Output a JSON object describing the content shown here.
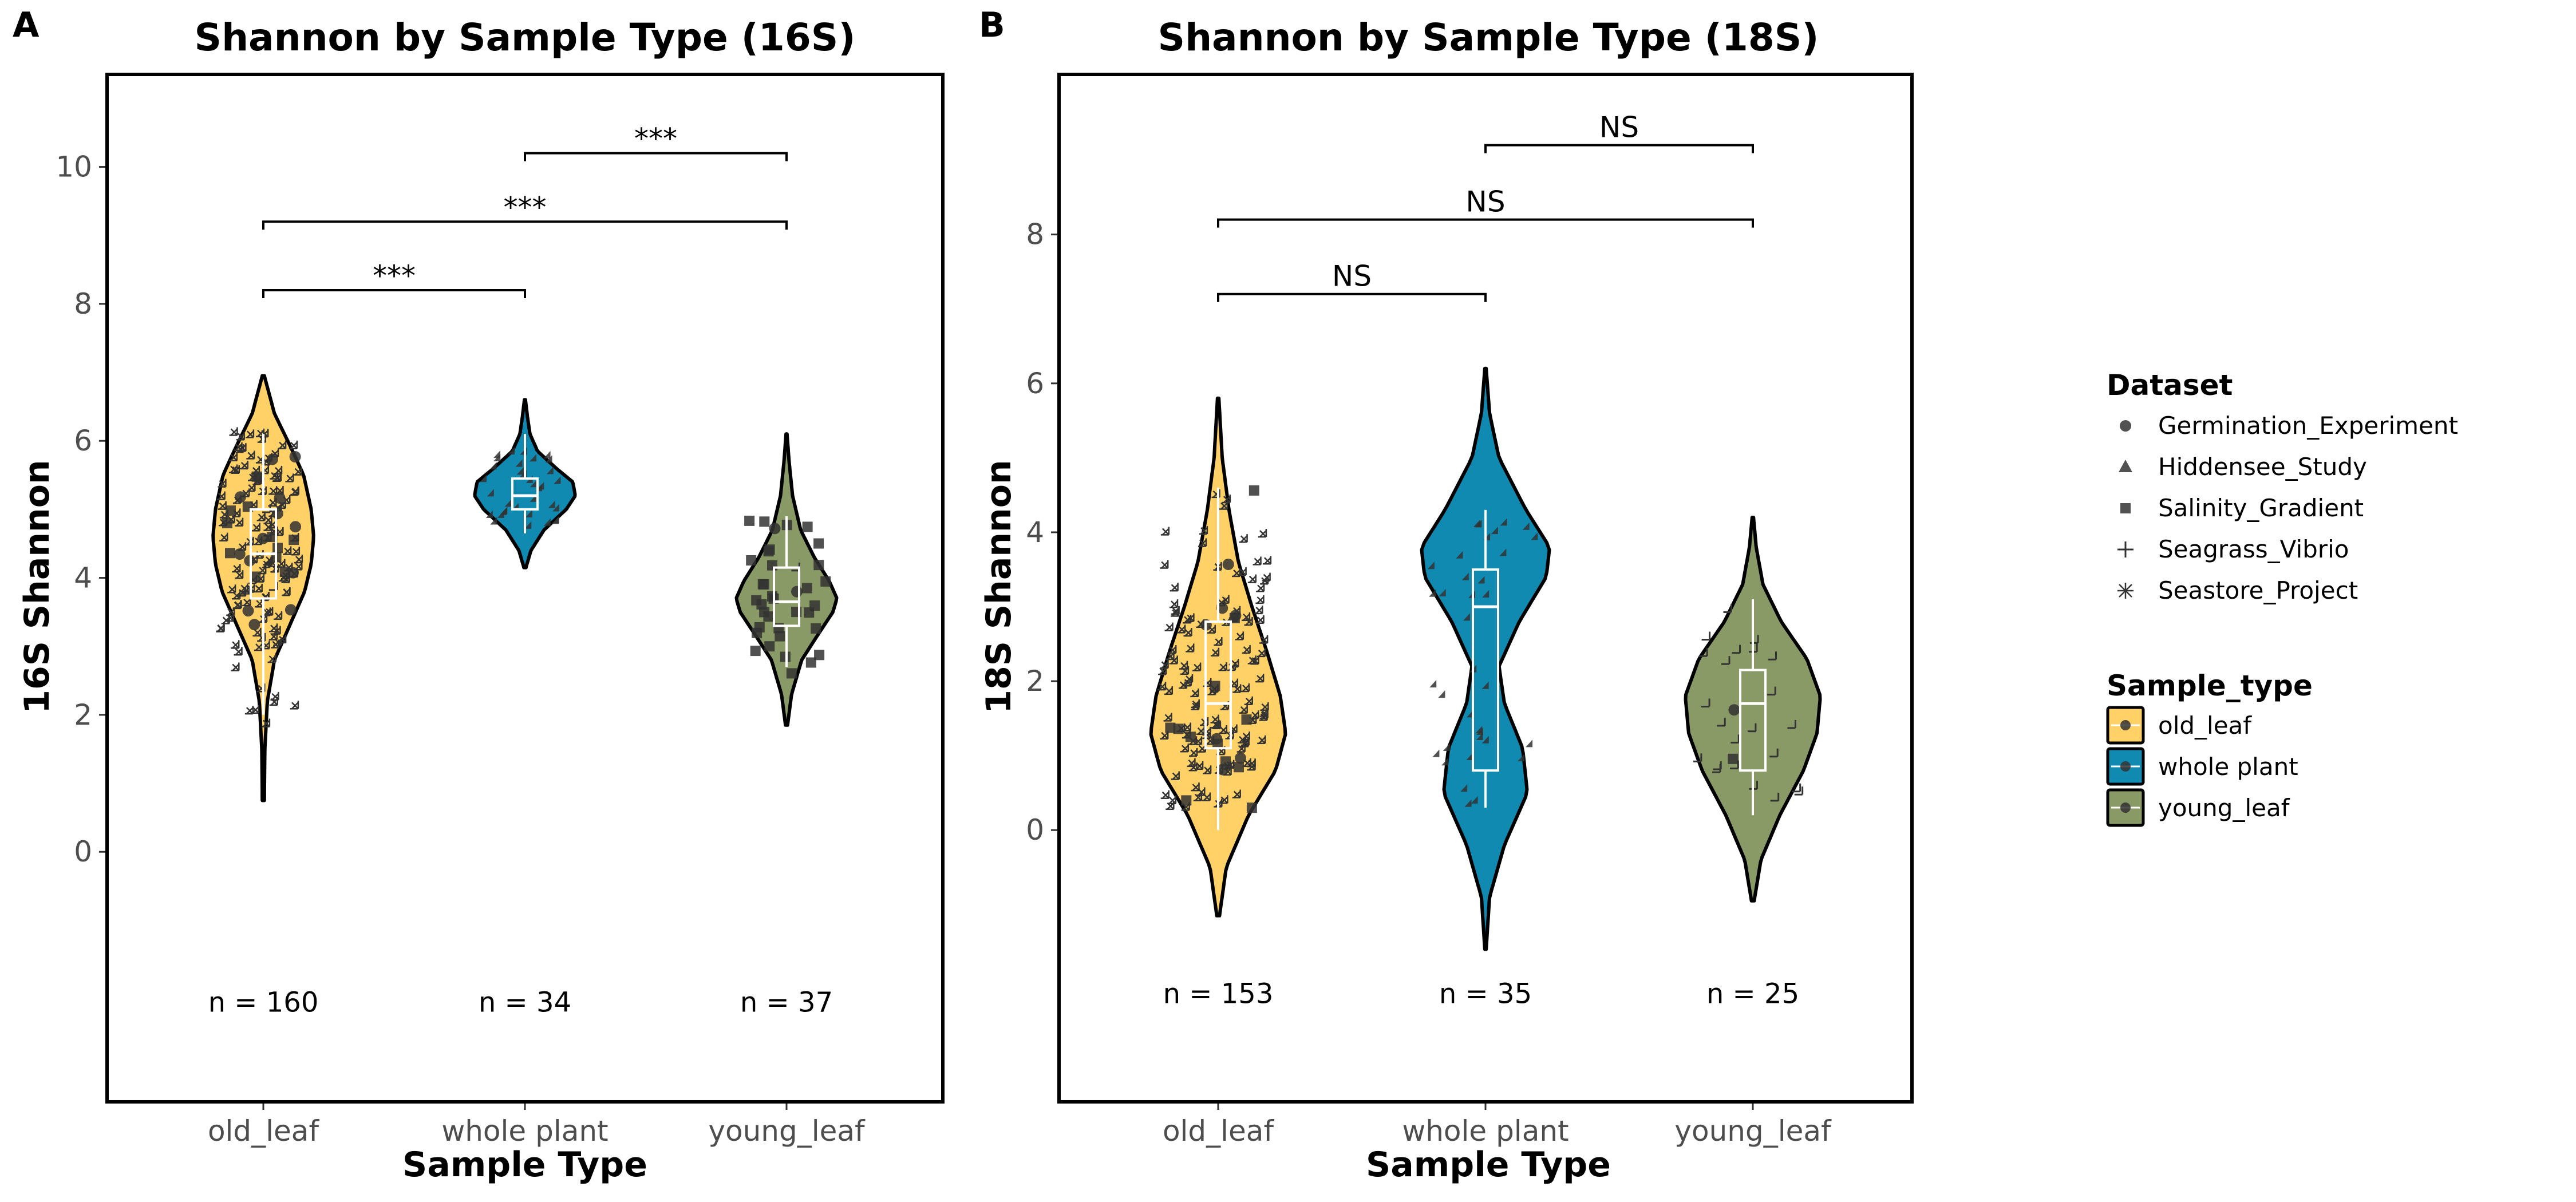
{
  "chart_data": [
    {
      "panel_label": "A",
      "type": "violin",
      "title": "Shannon by Sample Type (16S)",
      "xlabel": "Sample Type",
      "ylabel": "16S Shannon",
      "ylim": [
        -3.65,
        11.35
      ],
      "yticks": [
        "0",
        "2",
        "4",
        "6",
        "8",
        "10"
      ],
      "categories": [
        "old_leaf",
        "whole plant",
        "young_leaf"
      ],
      "violins": [
        {
          "category": "old_leaf",
          "min": 0.75,
          "max": 6.95,
          "median": 4.35,
          "q1": 3.7,
          "q3": 5.0,
          "whisker_low": 2.0,
          "whisker_high": 6.1,
          "density": [
            [
              0.75,
              0.02
            ],
            [
              1.5,
              0.03
            ],
            [
              2.2,
              0.08
            ],
            [
              2.8,
              0.22
            ],
            [
              3.3,
              0.52
            ],
            [
              3.8,
              0.82
            ],
            [
              4.2,
              0.95
            ],
            [
              4.6,
              1.0
            ],
            [
              5.0,
              0.95
            ],
            [
              5.5,
              0.8
            ],
            [
              5.9,
              0.55
            ],
            [
              6.4,
              0.22
            ],
            [
              6.95,
              0.02
            ]
          ]
        },
        {
          "category": "whole plant",
          "min": 4.15,
          "max": 6.6,
          "median": 5.2,
          "q1": 5.0,
          "q3": 5.45,
          "whisker_low": 4.65,
          "whisker_high": 6.1,
          "density": [
            [
              4.15,
              0.02
            ],
            [
              4.4,
              0.12
            ],
            [
              4.7,
              0.38
            ],
            [
              5.0,
              0.82
            ],
            [
              5.2,
              1.0
            ],
            [
              5.4,
              0.95
            ],
            [
              5.6,
              0.62
            ],
            [
              5.85,
              0.25
            ],
            [
              6.1,
              0.1
            ],
            [
              6.35,
              0.05
            ],
            [
              6.6,
              0.01
            ]
          ]
        },
        {
          "category": "young_leaf",
          "min": 1.85,
          "max": 6.1,
          "median": 3.65,
          "q1": 3.3,
          "q3": 4.15,
          "whisker_low": 2.7,
          "whisker_high": 4.9,
          "density": [
            [
              1.85,
              0.02
            ],
            [
              2.3,
              0.1
            ],
            [
              2.8,
              0.3
            ],
            [
              3.2,
              0.65
            ],
            [
              3.5,
              0.92
            ],
            [
              3.7,
              1.0
            ],
            [
              3.95,
              0.85
            ],
            [
              4.3,
              0.55
            ],
            [
              4.7,
              0.28
            ],
            [
              5.2,
              0.12
            ],
            [
              5.7,
              0.05
            ],
            [
              6.1,
              0.01
            ]
          ]
        }
      ],
      "points": [
        {
          "category": "old_leaf",
          "n": 160,
          "y_range": [
            1.6,
            6.1
          ],
          "shapes": [
            "asterisk",
            "circle",
            "square",
            "plus"
          ],
          "seed": 11
        },
        {
          "category": "whole plant",
          "n": 34,
          "y_range": [
            4.7,
            6.0
          ],
          "shapes": [
            "triangle"
          ],
          "seed": 22
        },
        {
          "category": "young_leaf",
          "n": 37,
          "y_range": [
            2.55,
            4.95
          ],
          "shapes": [
            "square",
            "plus",
            "circle"
          ],
          "seed": 33
        }
      ],
      "n_labels": [
        "n = 160",
        "n = 34",
        "n = 37"
      ],
      "n_label_y": -2.2,
      "comparisons": [
        {
          "from": 0,
          "to": 1,
          "y": 8.2,
          "label": "***"
        },
        {
          "from": 0,
          "to": 2,
          "y": 9.2,
          "label": "***"
        },
        {
          "from": 1,
          "to": 2,
          "y": 10.2,
          "label": "***"
        }
      ]
    },
    {
      "panel_label": "B",
      "type": "violin",
      "title": "Shannon by Sample Type (18S)",
      "xlabel": "Sample Type",
      "ylabel": "18S Shannon",
      "ylim": [
        -3.65,
        10.15
      ],
      "yticks": [
        "0",
        "2",
        "4",
        "6",
        "8"
      ],
      "categories": [
        "old_leaf",
        "whole plant",
        "young_leaf"
      ],
      "violins": [
        {
          "category": "old_leaf",
          "min": -1.15,
          "max": 5.8,
          "median": 1.7,
          "q1": 1.1,
          "q3": 2.8,
          "whisker_low": 0.0,
          "whisker_high": 4.6,
          "density": [
            [
              -1.15,
              0.02
            ],
            [
              -0.5,
              0.12
            ],
            [
              0.2,
              0.45
            ],
            [
              0.8,
              0.85
            ],
            [
              1.3,
              1.0
            ],
            [
              1.8,
              0.92
            ],
            [
              2.4,
              0.72
            ],
            [
              3.0,
              0.5
            ],
            [
              3.6,
              0.3
            ],
            [
              4.3,
              0.16
            ],
            [
              5.0,
              0.06
            ],
            [
              5.8,
              0.01
            ]
          ]
        },
        {
          "category": "whole plant",
          "min": -1.6,
          "max": 6.2,
          "median": 3.0,
          "q1": 0.8,
          "q3": 3.5,
          "whisker_low": 0.3,
          "whisker_high": 4.3,
          "density": [
            [
              -1.6,
              0.01
            ],
            [
              -0.9,
              0.06
            ],
            [
              -0.2,
              0.28
            ],
            [
              0.5,
              0.62
            ],
            [
              1.1,
              0.55
            ],
            [
              1.7,
              0.28
            ],
            [
              2.2,
              0.2
            ],
            [
              2.8,
              0.5
            ],
            [
              3.4,
              0.9
            ],
            [
              3.8,
              0.95
            ],
            [
              4.3,
              0.6
            ],
            [
              5.0,
              0.2
            ],
            [
              5.6,
              0.06
            ],
            [
              6.2,
              0.01
            ]
          ]
        },
        {
          "category": "young_leaf",
          "min": -0.95,
          "max": 4.2,
          "median": 1.7,
          "q1": 0.8,
          "q3": 2.15,
          "whisker_low": 0.2,
          "whisker_high": 3.1,
          "density": [
            [
              -0.95,
              0.02
            ],
            [
              -0.4,
              0.12
            ],
            [
              0.2,
              0.4
            ],
            [
              0.8,
              0.75
            ],
            [
              1.3,
              0.95
            ],
            [
              1.8,
              1.0
            ],
            [
              2.3,
              0.8
            ],
            [
              2.8,
              0.42
            ],
            [
              3.3,
              0.15
            ],
            [
              3.8,
              0.05
            ],
            [
              4.2,
              0.01
            ]
          ]
        }
      ],
      "points": [
        {
          "category": "old_leaf",
          "n": 153,
          "y_range": [
            0.0,
            4.6
          ],
          "shapes": [
            "asterisk",
            "circle",
            "square"
          ],
          "seed": 44
        },
        {
          "category": "whole plant",
          "n": 35,
          "y_range": [
            0.3,
            4.1
          ],
          "shapes": [
            "triangle"
          ],
          "seed": 55
        },
        {
          "category": "young_leaf",
          "n": 25,
          "y_range": [
            0.15,
            3.1
          ],
          "shapes": [
            "plus",
            "square",
            "circle"
          ],
          "seed": 66
        }
      ],
      "n_labels": [
        "n = 153",
        "n = 35",
        "n = 25"
      ],
      "n_label_y": -2.2,
      "comparisons": [
        {
          "from": 0,
          "to": 1,
          "y": 7.2,
          "label": "NS"
        },
        {
          "from": 0,
          "to": 2,
          "y": 8.2,
          "label": "NS"
        },
        {
          "from": 1,
          "to": 2,
          "y": 9.2,
          "label": "NS"
        }
      ]
    }
  ],
  "legend": {
    "dataset_title": "Dataset",
    "datasets": [
      {
        "label": "Germination_Experiment",
        "shape": "circle"
      },
      {
        "label": "Hiddensee_Study",
        "shape": "triangle"
      },
      {
        "label": "Salinity_Gradient",
        "shape": "square"
      },
      {
        "label": "Seagrass_Vibrio",
        "shape": "plus"
      },
      {
        "label": "Seastore_Project",
        "shape": "asterisk"
      }
    ],
    "sample_type_title": "Sample_type",
    "sample_types": [
      {
        "label": "old_leaf",
        "color": "#FFD166"
      },
      {
        "label": "whole plant",
        "color": "#118AB2"
      },
      {
        "label": "young_leaf",
        "color": "#8A9A66"
      }
    ]
  },
  "colors": {
    "old_leaf": "#FFD166",
    "whole plant": "#118AB2",
    "young_leaf": "#8A9A66",
    "point": "#333333"
  }
}
